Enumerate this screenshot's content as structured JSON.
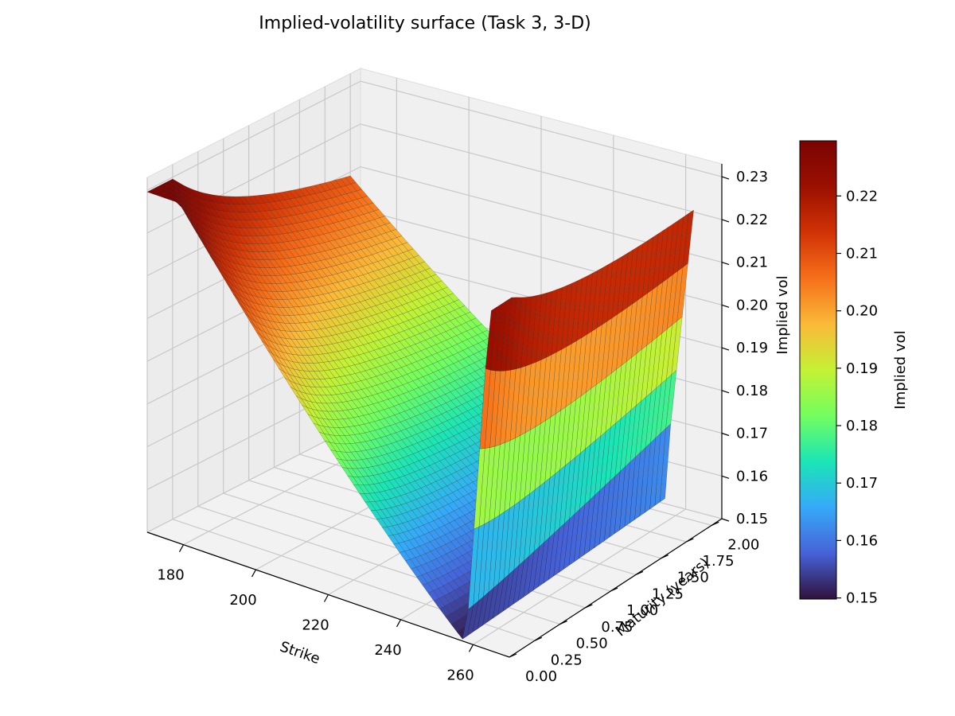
{
  "chart_data": {
    "type": "surface",
    "title": "Implied-volatility surface (Task 3, 3-D)",
    "xlabel": "Strike",
    "ylabel": "Maturity (years)",
    "zlabel": "Implied vol",
    "colorbar_label": "Implied vol",
    "colormap": "turbo",
    "x_ticks": [
      "180",
      "200",
      "220",
      "240",
      "260"
    ],
    "y_ticks": [
      "0.00",
      "0.25",
      "0.50",
      "0.75",
      "1.00",
      "1.25",
      "1.50",
      "1.75",
      "2.00"
    ],
    "z_ticks": [
      "0.15",
      "0.16",
      "0.17",
      "0.18",
      "0.19",
      "0.20",
      "0.21",
      "0.22",
      "0.23"
    ],
    "colorbar_ticks": [
      "0.15",
      "0.16",
      "0.17",
      "0.18",
      "0.19",
      "0.20",
      "0.21",
      "0.22"
    ],
    "xlim": [
      170,
      270
    ],
    "ylim": [
      0,
      2.1
    ],
    "zlim": [
      0.15,
      0.233
    ],
    "colorbar_range": [
      0.1498,
      0.2296
    ],
    "surface": {
      "strike_range": [
        170,
        265
      ],
      "maturity_range": [
        0,
        2
      ],
      "vol_min": 0.1498,
      "vol_max": 0.2296,
      "atm_strike": 258,
      "grid": [
        60,
        40
      ],
      "samples": [
        {
          "strike": 170,
          "maturity": 0.0,
          "vol": 0.2296
        },
        {
          "strike": 170,
          "maturity": 2.0,
          "vol": 0.228
        },
        {
          "strike": 258,
          "maturity": 0.0,
          "vol": 0.1498
        },
        {
          "strike": 265,
          "maturity": 2.0,
          "vol": 0.166
        },
        {
          "strike": 240,
          "maturity": 0.0,
          "vol": 0.158
        }
      ]
    },
    "grid": true
  }
}
